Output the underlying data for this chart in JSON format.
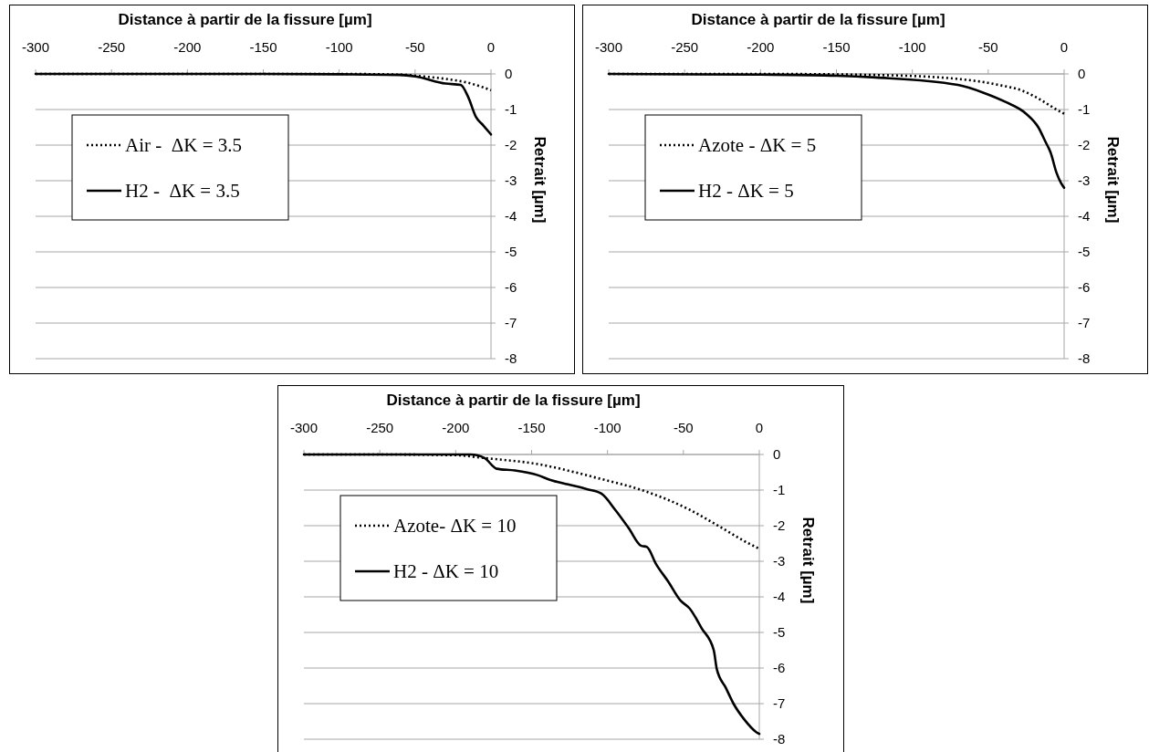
{
  "chart_data": [
    {
      "type": "line",
      "xlabel": "Distance à partir de la fissure [µm]",
      "ylabel": "Retrait [µm]",
      "xlim": [
        -300,
        0
      ],
      "ylim": [
        -8,
        0
      ],
      "xticks": [
        -300,
        -250,
        -200,
        -150,
        -100,
        -50,
        0
      ],
      "yticks": [
        0,
        -1,
        -2,
        -3,
        -4,
        -5,
        -6,
        -7,
        -8
      ],
      "grid": "y",
      "legend": "left",
      "series": [
        {
          "name": "Air -  ΔK = 3.5",
          "color": "#000000",
          "line_style": "dotted",
          "x": [
            -300,
            -250,
            -200,
            -150,
            -100,
            -60,
            -45,
            -30,
            -15,
            -5,
            0
          ],
          "values": [
            0,
            0,
            0,
            0,
            0,
            -0.02,
            -0.07,
            -0.14,
            -0.25,
            -0.38,
            -0.46
          ]
        },
        {
          "name": "H2 -  ΔK = 3.5",
          "color": "#000000",
          "line_style": "solid",
          "x": [
            -300,
            -250,
            -200,
            -150,
            -100,
            -60,
            -50,
            -30,
            -20,
            -15,
            -10,
            -5,
            0
          ],
          "values": [
            0,
            0,
            0,
            0,
            -0.01,
            -0.03,
            -0.07,
            -0.27,
            -0.31,
            -0.65,
            -1.2,
            -1.45,
            -1.7
          ]
        }
      ]
    },
    {
      "type": "line",
      "xlabel": "Distance à partir de la fissure [µm]",
      "ylabel": "Retrait [µm]",
      "xlim": [
        -300,
        0
      ],
      "ylim": [
        -8,
        0
      ],
      "xticks": [
        -300,
        -250,
        -200,
        -150,
        -100,
        -50,
        0
      ],
      "yticks": [
        0,
        -1,
        -2,
        -3,
        -4,
        -5,
        -6,
        -7,
        -8
      ],
      "grid": "y",
      "legend": "left",
      "series": [
        {
          "name": "Azote - ΔK = 5",
          "color": "#000000",
          "line_style": "dotted",
          "x": [
            -300,
            -200,
            -124,
            -70,
            -43,
            -27,
            -15,
            -7,
            0
          ],
          "values": [
            0,
            0,
            -0.03,
            -0.14,
            -0.31,
            -0.48,
            -0.74,
            -0.95,
            -1.12
          ]
        },
        {
          "name": "H2 - ΔK = 5",
          "color": "#000000",
          "line_style": "solid",
          "x": [
            -300,
            -200,
            -150,
            -124,
            -70,
            -53,
            -39,
            -25,
            -17,
            -12,
            -10,
            -9,
            -5,
            -2,
            0
          ],
          "values": [
            0,
            -0.02,
            -0.05,
            -0.1,
            -0.31,
            -0.53,
            -0.78,
            -1.12,
            -1.5,
            -1.93,
            -2.1,
            -2.2,
            -2.78,
            -3.07,
            -3.2
          ]
        }
      ]
    },
    {
      "type": "line",
      "xlabel": "Distance à partir de la fissure [µm]",
      "ylabel": "Retrait [µm]",
      "xlim": [
        -300,
        0
      ],
      "ylim": [
        -8,
        0
      ],
      "xticks": [
        -300,
        -250,
        -200,
        -150,
        -100,
        -50,
        0
      ],
      "yticks": [
        0,
        -1,
        -2,
        -3,
        -4,
        -5,
        -6,
        -7,
        -8
      ],
      "grid": "y",
      "legend": "left",
      "series": [
        {
          "name": "Azote- ΔK = 10",
          "color": "#000000",
          "line_style": "dotted",
          "x": [
            -300,
            -250,
            -200,
            -181,
            -146,
            -106,
            -76,
            -46,
            -26,
            -10,
            0
          ],
          "values": [
            0,
            0,
            -0.02,
            -0.1,
            -0.27,
            -0.67,
            -1.02,
            -1.55,
            -2.03,
            -2.43,
            -2.65
          ]
        },
        {
          "name": "H2 - ΔK = 10",
          "color": "#000000",
          "line_style": "solid",
          "x": [
            -300,
            -250,
            -210,
            -190,
            -181,
            -173,
            -161,
            -146,
            -138,
            -126,
            -113,
            -104,
            -95,
            -86,
            -78,
            -74,
            -68,
            -60,
            -52,
            -46,
            -38,
            -30,
            -28,
            -22,
            -17,
            -10,
            -2,
            0
          ],
          "values": [
            0,
            0,
            0,
            0,
            -0.1,
            -0.4,
            -0.45,
            -0.58,
            -0.71,
            -0.84,
            -0.98,
            -1.1,
            -1.55,
            -2.07,
            -2.56,
            -2.6,
            -3.08,
            -3.57,
            -4.1,
            -4.32,
            -4.88,
            -5.5,
            -6.03,
            -6.56,
            -7.0,
            -7.44,
            -7.8,
            -7.85
          ]
        }
      ]
    }
  ]
}
